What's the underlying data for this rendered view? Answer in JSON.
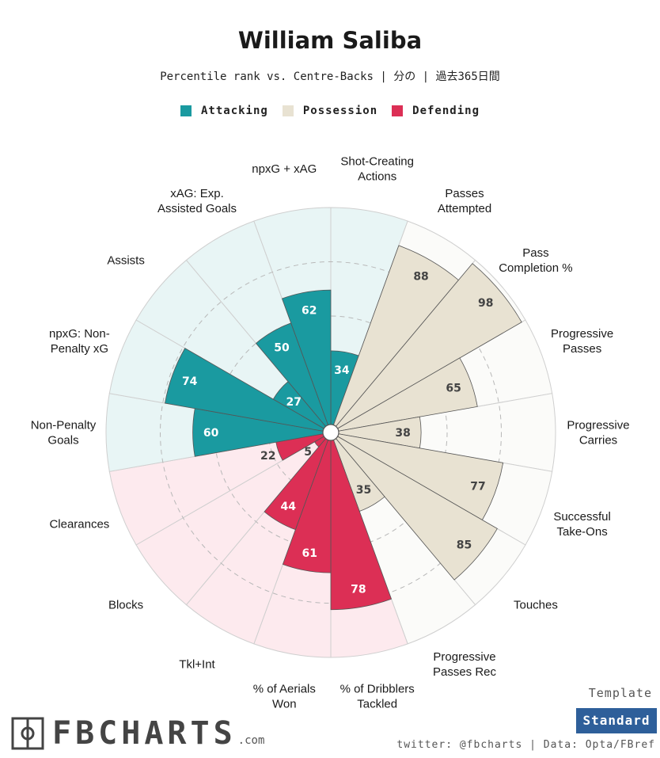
{
  "header": {
    "title": "William Saliba",
    "subtitle": "Percentile rank vs. Centre-Backs | 分の | 過去365日間"
  },
  "legend": [
    {
      "label": "Attacking",
      "color": "#1a9aa0"
    },
    {
      "label": "Possession",
      "color": "#e8e2d2"
    },
    {
      "label": "Defending",
      "color": "#dc2f55"
    }
  ],
  "chart_data": {
    "type": "bar",
    "subtype": "polar",
    "title": "William Saliba",
    "subtitle": "Percentile rank vs. Centre-Backs | 分の | 過去365日間",
    "ylim": [
      0,
      100
    ],
    "start": "top",
    "direction": "clockwise",
    "categories": [
      {
        "label": "Shot-Creating\nActions",
        "value": 34,
        "group": "Attacking"
      },
      {
        "label": "Passes\nAttempted",
        "value": 88,
        "group": "Possession"
      },
      {
        "label": "Pass\nCompletion %",
        "value": 98,
        "group": "Possession"
      },
      {
        "label": "Progressive\nPasses",
        "value": 65,
        "group": "Possession"
      },
      {
        "label": "Progressive\nCarries",
        "value": 38,
        "group": "Possession"
      },
      {
        "label": "Successful\nTake-Ons",
        "value": 77,
        "group": "Possession"
      },
      {
        "label": "Touches",
        "value": 85,
        "group": "Possession"
      },
      {
        "label": "Progressive\nPasses Rec",
        "value": 35,
        "group": "Possession"
      },
      {
        "label": "% of Dribblers\nTackled",
        "value": 78,
        "group": "Defending"
      },
      {
        "label": "% of Aerials\nWon",
        "value": 61,
        "group": "Defending"
      },
      {
        "label": "Tkl+Int",
        "value": 44,
        "group": "Defending"
      },
      {
        "label": "Blocks",
        "value": 5,
        "group": "Defending"
      },
      {
        "label": "Clearances",
        "value": 22,
        "group": "Defending"
      },
      {
        "label": "Non-Penalty\nGoals",
        "value": 60,
        "group": "Attacking"
      },
      {
        "label": "npxG: Non-\nPenalty xG",
        "value": 74,
        "group": "Attacking"
      },
      {
        "label": "Assists",
        "value": 27,
        "group": "Attacking"
      },
      {
        "label": "xAG: Exp.\nAssisted Goals",
        "value": 50,
        "group": "Attacking"
      },
      {
        "label": "npxG + xAG",
        "value": 62,
        "group": "Attacking"
      }
    ],
    "colors": {
      "Attacking": "#1a9aa0",
      "Possession": "#e8e2d2",
      "Defending": "#dc2f55",
      "Attacking_bg": "#e8f5f5",
      "Possession_bg": "#fbfbf9",
      "Defending_bg": "#fdeaee"
    }
  },
  "branding": {
    "logo_text": "FBCHARTS",
    "logo_suffix": ".com"
  },
  "template": {
    "label": "Template",
    "value": "Standard"
  },
  "footer": "twitter: @fbcharts | Data: Opta/FBref"
}
